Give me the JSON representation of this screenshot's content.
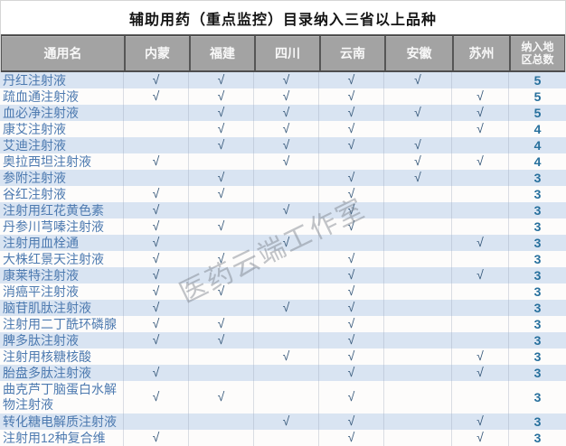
{
  "title": "辅助用药（重点监控）目录纳入三省以上品种",
  "watermark": "医药云端工作室",
  "check_symbol": "√",
  "colors": {
    "stripe_blue": "#d9e4f2",
    "header_gray": "#a3a3a3",
    "header_border": "#565656",
    "name_text": "#4d7ab0",
    "check_mark": "#36587a",
    "total_text": "#27709d"
  },
  "columns": [
    "通用名",
    "内蒙",
    "福建",
    "四川",
    "云南",
    "安徽",
    "苏州",
    "纳入地区总数"
  ],
  "chart_data": {
    "type": "table",
    "title": "辅助用药（重点监控）目录纳入三省以上品种",
    "columns": [
      "通用名",
      "内蒙",
      "福建",
      "四川",
      "云南",
      "安徽",
      "苏州",
      "纳入地区总数"
    ]
  },
  "rows": [
    {
      "name": "丹红注射液",
      "marks": [
        1,
        1,
        1,
        1,
        1,
        0
      ],
      "total": "5"
    },
    {
      "name": "疏血通注射液",
      "marks": [
        1,
        1,
        1,
        1,
        0,
        1
      ],
      "total": "5"
    },
    {
      "name": "血必净注射液",
      "marks": [
        0,
        1,
        1,
        1,
        1,
        1
      ],
      "total": "5"
    },
    {
      "name": "康艾注射液",
      "marks": [
        0,
        1,
        1,
        1,
        0,
        1
      ],
      "total": "4"
    },
    {
      "name": "艾迪注射液",
      "marks": [
        0,
        1,
        1,
        1,
        1,
        0
      ],
      "total": "4"
    },
    {
      "name": "奥拉西坦注射液",
      "marks": [
        1,
        0,
        1,
        0,
        1,
        1
      ],
      "total": "4"
    },
    {
      "name": "参附注射液",
      "marks": [
        0,
        1,
        0,
        1,
        1,
        0
      ],
      "total": "3"
    },
    {
      "name": "谷红注射液",
      "marks": [
        1,
        1,
        0,
        1,
        0,
        0
      ],
      "total": "3"
    },
    {
      "name": "注射用红花黄色素",
      "marks": [
        1,
        0,
        1,
        1,
        0,
        0
      ],
      "total": "3"
    },
    {
      "name": "丹参川芎嗪注射液",
      "marks": [
        1,
        1,
        0,
        1,
        0,
        0
      ],
      "total": "3"
    },
    {
      "name": "注射用血栓通",
      "marks": [
        1,
        0,
        1,
        0,
        0,
        1
      ],
      "total": "3"
    },
    {
      "name": "大株红景天注射液",
      "marks": [
        1,
        1,
        0,
        1,
        0,
        0
      ],
      "total": "3"
    },
    {
      "name": "康莱特注射液",
      "marks": [
        1,
        0,
        0,
        1,
        0,
        1
      ],
      "total": "3"
    },
    {
      "name": "消癌平注射液",
      "marks": [
        1,
        1,
        0,
        1,
        0,
        0
      ],
      "total": "3"
    },
    {
      "name": "脑苷肌肽注射液",
      "marks": [
        1,
        0,
        1,
        1,
        0,
        0
      ],
      "total": "3"
    },
    {
      "name": "注射用二丁酰环磷腺",
      "marks": [
        1,
        1,
        0,
        1,
        0,
        0
      ],
      "total": "3"
    },
    {
      "name": "脾多肽注射液",
      "marks": [
        1,
        1,
        0,
        1,
        0,
        0
      ],
      "total": "3"
    },
    {
      "name": "注射用核糖核酸",
      "marks": [
        0,
        0,
        1,
        1,
        0,
        1
      ],
      "total": "3"
    },
    {
      "name": "胎盘多肽注射液",
      "marks": [
        1,
        0,
        0,
        1,
        0,
        1
      ],
      "total": "3"
    },
    {
      "name": "曲克芦丁脑蛋白水解物注射液",
      "marks": [
        1,
        1,
        0,
        1,
        0,
        0
      ],
      "total": "3"
    },
    {
      "name": "转化糖电解质注射液",
      "marks": [
        0,
        0,
        1,
        1,
        0,
        1
      ],
      "total": "3"
    },
    {
      "name": "注射用12种复合维",
      "marks": [
        1,
        0,
        0,
        1,
        0,
        1
      ],
      "total": "3"
    }
  ]
}
